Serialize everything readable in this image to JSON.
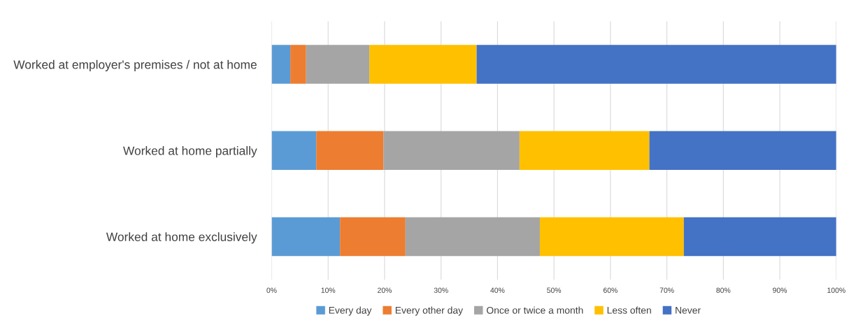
{
  "chart_data": {
    "type": "bar",
    "orientation": "horizontal",
    "stacked": true,
    "categories": [
      "Worked at employer's premises / not at home",
      "Worked at home partially",
      "Worked at home exclusively"
    ],
    "series": [
      {
        "name": "Every day",
        "color": "#5b9bd5",
        "values": [
          3.3,
          7.9,
          12.1
        ]
      },
      {
        "name": "Every other day",
        "color": "#ed7d31",
        "values": [
          2.8,
          11.9,
          11.6
        ]
      },
      {
        "name": "Once or twice a month",
        "color": "#a5a5a5",
        "values": [
          11.2,
          24.1,
          23.8
        ]
      },
      {
        "name": "Less often",
        "color": "#ffc000",
        "values": [
          19.0,
          23.0,
          25.5
        ]
      },
      {
        "name": "Never",
        "color": "#4472c4",
        "values": [
          63.7,
          33.1,
          27.0
        ]
      }
    ],
    "xlim": [
      0,
      100
    ],
    "xticks": [
      {
        "value": 0,
        "label": "0%"
      },
      {
        "value": 10,
        "label": "10%"
      },
      {
        "value": 20,
        "label": "20%"
      },
      {
        "value": 30,
        "label": "30%"
      },
      {
        "value": 40,
        "label": "40%"
      },
      {
        "value": 50,
        "label": "50%"
      },
      {
        "value": 60,
        "label": "60%"
      },
      {
        "value": 70,
        "label": "70%"
      },
      {
        "value": 80,
        "label": "80%"
      },
      {
        "value": 90,
        "label": "90%"
      },
      {
        "value": 100,
        "label": "100%"
      }
    ],
    "grid": "x",
    "legend": "bottom"
  }
}
